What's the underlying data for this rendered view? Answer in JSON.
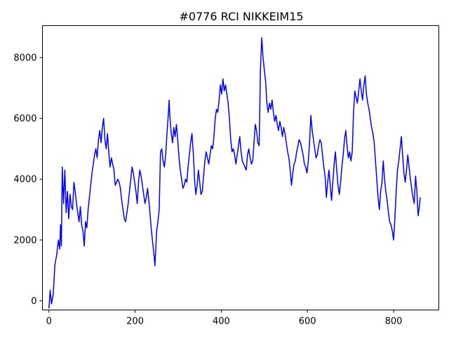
{
  "chart_data": {
    "type": "line",
    "title": "#0776 RCI NIKKEIM15",
    "xlabel": "",
    "ylabel": "",
    "xlim": [
      -15,
      905
    ],
    "ylim": [
      -300,
      9050
    ],
    "x_ticks": [
      0,
      200,
      400,
      600,
      800
    ],
    "y_ticks": [
      0,
      2000,
      4000,
      6000,
      8000
    ],
    "grid": false,
    "legend": "none",
    "series": [
      {
        "color": "#0000ff",
        "points": [
          [
            0,
            -250
          ],
          [
            3,
            350
          ],
          [
            6,
            -100
          ],
          [
            10,
            200
          ],
          [
            14,
            1200
          ],
          [
            18,
            1500
          ],
          [
            22,
            2000
          ],
          [
            25,
            1700
          ],
          [
            27,
            2500
          ],
          [
            29,
            1800
          ],
          [
            31,
            4400
          ],
          [
            34,
            3200
          ],
          [
            37,
            4300
          ],
          [
            40,
            2900
          ],
          [
            43,
            3600
          ],
          [
            46,
            2700
          ],
          [
            49,
            3500
          ],
          [
            52,
            3100
          ],
          [
            55,
            3000
          ],
          [
            58,
            3900
          ],
          [
            61,
            3600
          ],
          [
            64,
            3200
          ],
          [
            67,
            2900
          ],
          [
            70,
            2600
          ],
          [
            73,
            3100
          ],
          [
            76,
            2500
          ],
          [
            79,
            2300
          ],
          [
            82,
            1800
          ],
          [
            85,
            2600
          ],
          [
            88,
            2400
          ],
          [
            91,
            3000
          ],
          [
            94,
            3400
          ],
          [
            97,
            3800
          ],
          [
            100,
            4200
          ],
          [
            103,
            4500
          ],
          [
            106,
            4800
          ],
          [
            109,
            5000
          ],
          [
            112,
            4700
          ],
          [
            115,
            5300
          ],
          [
            118,
            5600
          ],
          [
            121,
            5200
          ],
          [
            124,
            5700
          ],
          [
            127,
            6000
          ],
          [
            130,
            5300
          ],
          [
            133,
            5000
          ],
          [
            136,
            5500
          ],
          [
            139,
            4900
          ],
          [
            142,
            4400
          ],
          [
            145,
            4700
          ],
          [
            148,
            4500
          ],
          [
            151,
            4300
          ],
          [
            154,
            3800
          ],
          [
            157,
            3900
          ],
          [
            160,
            4000
          ],
          [
            163,
            3900
          ],
          [
            166,
            3700
          ],
          [
            169,
            3300
          ],
          [
            172,
            3000
          ],
          [
            175,
            2700
          ],
          [
            178,
            2600
          ],
          [
            181,
            2900
          ],
          [
            184,
            3200
          ],
          [
            187,
            3600
          ],
          [
            190,
            4000
          ],
          [
            193,
            4400
          ],
          [
            196,
            4200
          ],
          [
            199,
            3900
          ],
          [
            202,
            3600
          ],
          [
            205,
            3200
          ],
          [
            208,
            3900
          ],
          [
            211,
            4300
          ],
          [
            214,
            4100
          ],
          [
            217,
            3800
          ],
          [
            220,
            3500
          ],
          [
            223,
            3200
          ],
          [
            226,
            3400
          ],
          [
            229,
            3700
          ],
          [
            232,
            3300
          ],
          [
            235,
            2800
          ],
          [
            238,
            2300
          ],
          [
            241,
            1900
          ],
          [
            244,
            1500
          ],
          [
            246,
            1150
          ],
          [
            248,
            1700
          ],
          [
            250,
            2300
          ],
          [
            253,
            2600
          ],
          [
            256,
            3000
          ],
          [
            259,
            4900
          ],
          [
            262,
            5000
          ],
          [
            265,
            4600
          ],
          [
            268,
            4400
          ],
          [
            271,
            4800
          ],
          [
            274,
            5500
          ],
          [
            277,
            6100
          ],
          [
            279,
            6600
          ],
          [
            281,
            6000
          ],
          [
            284,
            5500
          ],
          [
            287,
            5200
          ],
          [
            290,
            5700
          ],
          [
            293,
            5400
          ],
          [
            296,
            5800
          ],
          [
            299,
            5300
          ],
          [
            302,
            4700
          ],
          [
            305,
            4300
          ],
          [
            308,
            4000
          ],
          [
            311,
            3700
          ],
          [
            314,
            3800
          ],
          [
            317,
            4000
          ],
          [
            320,
            3900
          ],
          [
            323,
            4400
          ],
          [
            326,
            4800
          ],
          [
            329,
            5200
          ],
          [
            332,
            5500
          ],
          [
            335,
            4900
          ],
          [
            338,
            4000
          ],
          [
            341,
            3500
          ],
          [
            344,
            3800
          ],
          [
            347,
            4300
          ],
          [
            350,
            3900
          ],
          [
            353,
            3500
          ],
          [
            356,
            3600
          ],
          [
            359,
            4100
          ],
          [
            362,
            4600
          ],
          [
            365,
            4900
          ],
          [
            368,
            4700
          ],
          [
            371,
            4500
          ],
          [
            374,
            4800
          ],
          [
            377,
            5100
          ],
          [
            380,
            5000
          ],
          [
            383,
            5400
          ],
          [
            386,
            6000
          ],
          [
            389,
            6300
          ],
          [
            392,
            6200
          ],
          [
            395,
            6600
          ],
          [
            398,
            7100
          ],
          [
            401,
            6800
          ],
          [
            404,
            7300
          ],
          [
            407,
            6900
          ],
          [
            410,
            7100
          ],
          [
            413,
            6800
          ],
          [
            416,
            6500
          ],
          [
            419,
            6000
          ],
          [
            422,
            5300
          ],
          [
            425,
            4900
          ],
          [
            428,
            5000
          ],
          [
            431,
            4800
          ],
          [
            434,
            4500
          ],
          [
            437,
            4800
          ],
          [
            440,
            5100
          ],
          [
            443,
            5400
          ],
          [
            446,
            4900
          ],
          [
            449,
            4600
          ],
          [
            452,
            4500
          ],
          [
            455,
            4400
          ],
          [
            458,
            4300
          ],
          [
            461,
            4800
          ],
          [
            464,
            5000
          ],
          [
            467,
            4700
          ],
          [
            470,
            4500
          ],
          [
            473,
            4600
          ],
          [
            476,
            5200
          ],
          [
            479,
            5800
          ],
          [
            482,
            5600
          ],
          [
            485,
            5200
          ],
          [
            488,
            5100
          ],
          [
            491,
            7600
          ],
          [
            494,
            8650
          ],
          [
            497,
            8000
          ],
          [
            500,
            7600
          ],
          [
            503,
            7200
          ],
          [
            506,
            6500
          ],
          [
            509,
            6200
          ],
          [
            512,
            6500
          ],
          [
            515,
            6300
          ],
          [
            518,
            6600
          ],
          [
            521,
            6200
          ],
          [
            524,
            5900
          ],
          [
            527,
            6100
          ],
          [
            530,
            5800
          ],
          [
            533,
            5600
          ],
          [
            536,
            5900
          ],
          [
            539,
            5700
          ],
          [
            542,
            5400
          ],
          [
            545,
            5700
          ],
          [
            548,
            5500
          ],
          [
            551,
            5200
          ],
          [
            554,
            4900
          ],
          [
            557,
            4700
          ],
          [
            560,
            4300
          ],
          [
            563,
            3800
          ],
          [
            566,
            4200
          ],
          [
            569,
            4500
          ],
          [
            572,
            4600
          ],
          [
            575,
            4900
          ],
          [
            578,
            5100
          ],
          [
            581,
            5300
          ],
          [
            584,
            5200
          ],
          [
            587,
            5000
          ],
          [
            590,
            4800
          ],
          [
            593,
            4500
          ],
          [
            596,
            4400
          ],
          [
            599,
            4200
          ],
          [
            602,
            4600
          ],
          [
            605,
            5200
          ],
          [
            608,
            6100
          ],
          [
            611,
            5600
          ],
          [
            614,
            5300
          ],
          [
            617,
            5000
          ],
          [
            620,
            4700
          ],
          [
            623,
            4800
          ],
          [
            626,
            5100
          ],
          [
            629,
            5300
          ],
          [
            632,
            5200
          ],
          [
            635,
            4800
          ],
          [
            638,
            4400
          ],
          [
            641,
            4100
          ],
          [
            644,
            3400
          ],
          [
            647,
            3900
          ],
          [
            650,
            4300
          ],
          [
            653,
            3800
          ],
          [
            656,
            3300
          ],
          [
            659,
            3900
          ],
          [
            662,
            4500
          ],
          [
            665,
            4900
          ],
          [
            668,
            4300
          ],
          [
            671,
            3800
          ],
          [
            674,
            3500
          ],
          [
            677,
            3900
          ],
          [
            680,
            4400
          ],
          [
            683,
            4800
          ],
          [
            686,
            5300
          ],
          [
            689,
            5600
          ],
          [
            692,
            5100
          ],
          [
            695,
            4700
          ],
          [
            698,
            4900
          ],
          [
            701,
            4600
          ],
          [
            704,
            4900
          ],
          [
            707,
            6200
          ],
          [
            710,
            6900
          ],
          [
            713,
            6700
          ],
          [
            716,
            6500
          ],
          [
            719,
            6900
          ],
          [
            722,
            7300
          ],
          [
            725,
            6900
          ],
          [
            728,
            6600
          ],
          [
            731,
            7100
          ],
          [
            734,
            7400
          ],
          [
            737,
            6800
          ],
          [
            740,
            6500
          ],
          [
            743,
            6300
          ],
          [
            746,
            6000
          ],
          [
            749,
            5700
          ],
          [
            752,
            5500
          ],
          [
            755,
            5200
          ],
          [
            758,
            4600
          ],
          [
            761,
            4000
          ],
          [
            764,
            3400
          ],
          [
            767,
            3000
          ],
          [
            770,
            3600
          ],
          [
            773,
            3900
          ],
          [
            776,
            4600
          ],
          [
            779,
            4000
          ],
          [
            782,
            3600
          ],
          [
            785,
            3300
          ],
          [
            788,
            2900
          ],
          [
            791,
            2600
          ],
          [
            794,
            2500
          ],
          [
            797,
            2300
          ],
          [
            800,
            2000
          ],
          [
            803,
            2700
          ],
          [
            806,
            3600
          ],
          [
            809,
            4300
          ],
          [
            812,
            4600
          ],
          [
            815,
            5000
          ],
          [
            818,
            5400
          ],
          [
            821,
            4800
          ],
          [
            824,
            4200
          ],
          [
            827,
            3900
          ],
          [
            830,
            4300
          ],
          [
            833,
            4800
          ],
          [
            836,
            4400
          ],
          [
            839,
            4000
          ],
          [
            842,
            3700
          ],
          [
            845,
            3400
          ],
          [
            848,
            3200
          ],
          [
            851,
            4100
          ],
          [
            854,
            3600
          ],
          [
            857,
            2800
          ],
          [
            859,
            3000
          ],
          [
            862,
            3400
          ]
        ]
      }
    ]
  }
}
